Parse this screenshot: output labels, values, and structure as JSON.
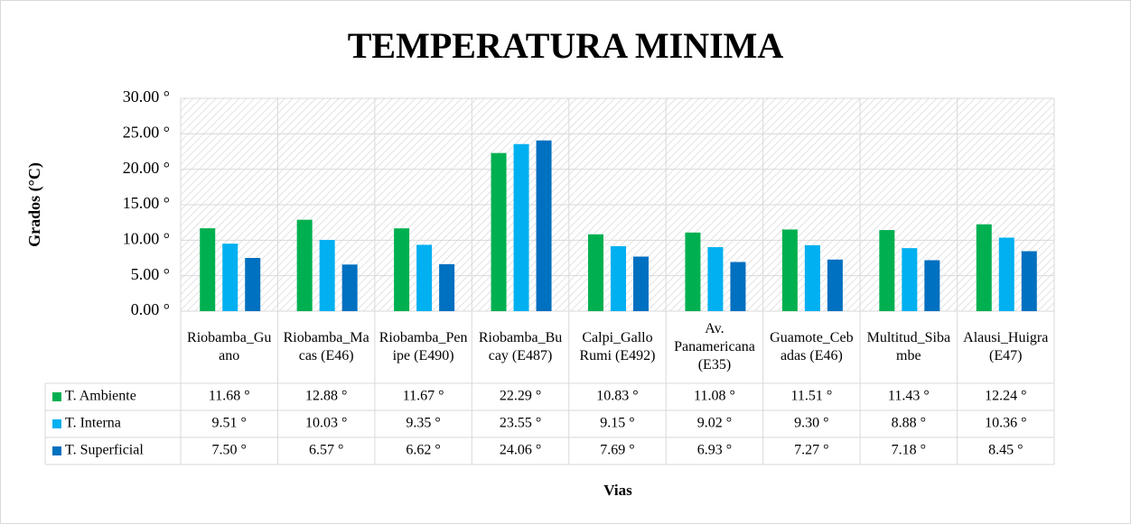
{
  "chart_data": {
    "type": "bar",
    "title": "TEMPERATURA MINIMA",
    "y_label": "Grados (°C)",
    "x_label": "Vias",
    "categories": [
      "Riobamba_Guano",
      "Riobamba_Macas (E46)",
      "Riobamba_Penipe (E490)",
      "Riobamba_Bucay (E487)",
      "Calpi_Gallo Rumi (E492)",
      "Av. Panamericana (E35)",
      "Guamote_Cebadas (E46)",
      "Multitud_Sibambe",
      "Alausi_Huigra (E47)"
    ],
    "series": [
      {
        "name": "T. Ambiente",
        "color": "#00b050",
        "values": [
          11.68,
          12.88,
          11.67,
          22.29,
          10.83,
          11.08,
          11.51,
          11.43,
          12.24
        ],
        "value_labels": [
          "11.68 °",
          "12.88 °",
          "11.67 °",
          "22.29 °",
          "10.83 °",
          "11.08 °",
          "11.51 °",
          "11.43 °",
          "12.24 °"
        ]
      },
      {
        "name": "T. Interna",
        "color": "#00b0f0",
        "values": [
          9.51,
          10.03,
          9.35,
          23.55,
          9.15,
          9.02,
          9.3,
          8.88,
          10.36
        ],
        "value_labels": [
          "9.51 °",
          "10.03 °",
          "9.35 °",
          "23.55 °",
          "9.15 °",
          "9.02 °",
          "9.30 °",
          "8.88 °",
          "10.36 °"
        ]
      },
      {
        "name": "T. Superficial",
        "color": "#0070c0",
        "values": [
          7.5,
          6.57,
          6.62,
          24.06,
          7.69,
          6.93,
          7.27,
          7.18,
          8.45
        ],
        "value_labels": [
          "7.50 °",
          "6.57 °",
          "6.62 °",
          "24.06 °",
          "7.69 °",
          "6.93 °",
          "7.27 °",
          "7.18 °",
          "8.45 °"
        ]
      }
    ],
    "ylim": [
      0,
      30
    ],
    "yticks": [
      {
        "value": 0,
        "label": "0.00 °"
      },
      {
        "value": 5,
        "label": "5.00 °"
      },
      {
        "value": 10,
        "label": "10.00 °"
      },
      {
        "value": 15,
        "label": "15.00 °"
      },
      {
        "value": 20,
        "label": "20.00 °"
      },
      {
        "value": 25,
        "label": "25.00 °"
      },
      {
        "value": 30,
        "label": "30.00 °"
      }
    ],
    "grid": true
  }
}
